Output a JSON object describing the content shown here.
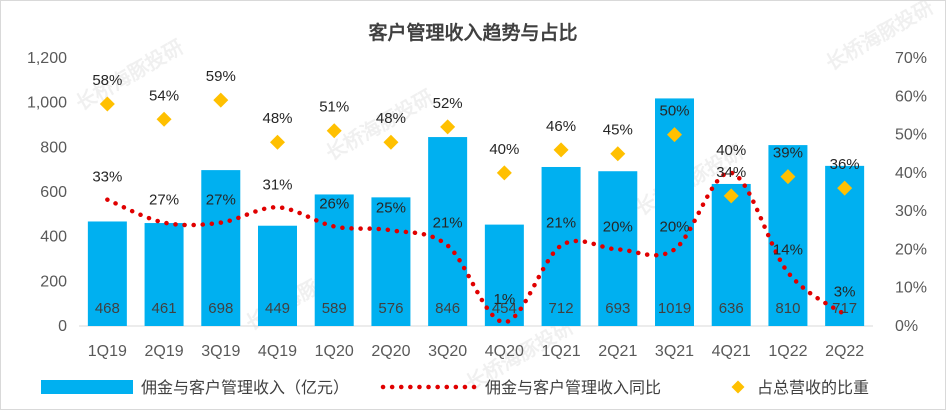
{
  "chart_data": {
    "type": "bar",
    "title": "客户管理收入趋势与占比",
    "categories": [
      "1Q19",
      "2Q19",
      "3Q19",
      "4Q19",
      "1Q20",
      "2Q20",
      "3Q20",
      "4Q20",
      "1Q21",
      "2Q21",
      "3Q21",
      "4Q21",
      "1Q22",
      "2Q22"
    ],
    "y_left": {
      "ticks": [
        "0",
        "200",
        "400",
        "600",
        "800",
        "1,000",
        "1,200"
      ],
      "ylim": [
        0,
        1200
      ]
    },
    "y_right": {
      "ticks": [
        "0%",
        "10%",
        "20%",
        "30%",
        "40%",
        "50%",
        "60%",
        "70%"
      ],
      "ylim": [
        0,
        70
      ]
    },
    "series": [
      {
        "name": "佣金与客户管理收入（亿元）",
        "type": "bar",
        "axis": "left",
        "color": "#00b0f0",
        "values": [
          468,
          461,
          698,
          449,
          589,
          576,
          846,
          454,
          712,
          693,
          1019,
          636,
          810,
          717
        ],
        "labels": [
          "468",
          "461",
          "698",
          "449",
          "589",
          "576",
          "846",
          "454",
          "712",
          "693",
          "1019",
          "636",
          "810",
          "717"
        ]
      },
      {
        "name": "佣金与客户管理收入同比",
        "type": "line",
        "style": "dotted",
        "axis": "right",
        "color": "#e00000",
        "values": [
          33,
          27,
          27,
          31,
          26,
          25,
          21,
          1,
          21,
          20,
          20,
          40,
          14,
          3
        ],
        "labels": [
          "33%",
          "27%",
          "27%",
          "31%",
          "26%",
          "25%",
          "21%",
          "1%",
          "21%",
          "20%",
          "20%",
          "40%",
          "14%",
          "3%"
        ]
      },
      {
        "name": "占总营收的比重",
        "type": "scatter",
        "marker": "diamond",
        "axis": "right",
        "color": "#ffc000",
        "values": [
          58,
          54,
          59,
          48,
          51,
          48,
          52,
          40,
          46,
          45,
          50,
          34,
          39,
          36
        ],
        "labels": [
          "58%",
          "54%",
          "59%",
          "48%",
          "51%",
          "48%",
          "52%",
          "40%",
          "46%",
          "45%",
          "50%",
          "34%",
          "39%",
          "36%"
        ]
      }
    ],
    "legend": "bottom",
    "grid": false
  },
  "watermark": "长桥海豚投研"
}
